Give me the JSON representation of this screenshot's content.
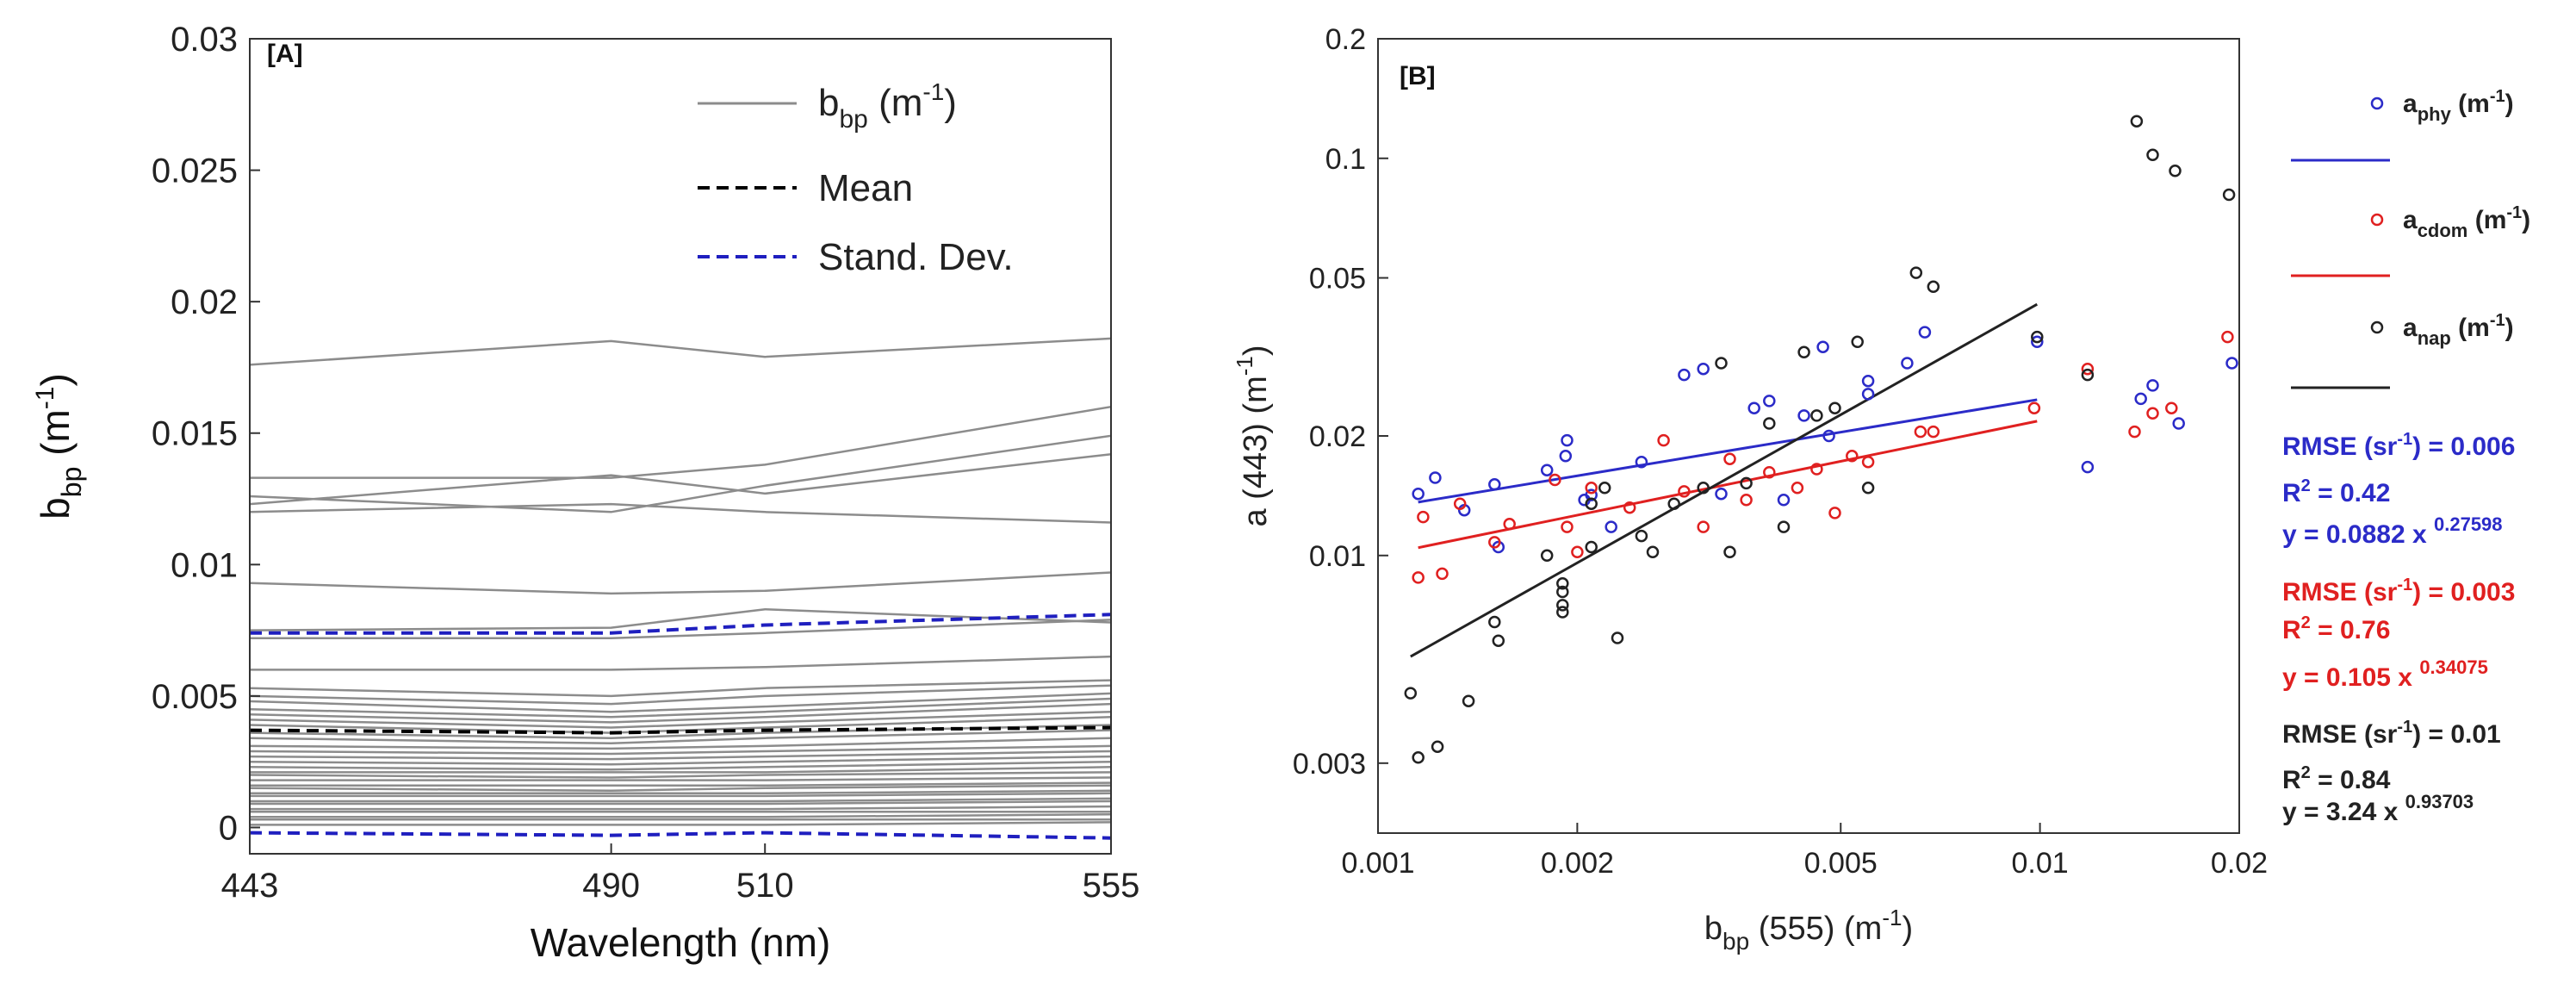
{
  "chart_data": [
    {
      "panel_label": "[A]",
      "type": "line",
      "xlabel": "Wavelength (nm)",
      "ylabel_main": "b",
      "ylabel_sub": "bp",
      "ylabel_unit_open": " (m",
      "ylabel_sup": "-1",
      "ylabel_unit_close": ")",
      "x": [
        443,
        490,
        510,
        555
      ],
      "x_ticks": [
        "443",
        "490",
        "510",
        "555"
      ],
      "ylim": [
        -0.001,
        0.03
      ],
      "y_ticks": [
        {
          "value": 0,
          "label": "0"
        },
        {
          "value": 0.005,
          "label": "0.005"
        },
        {
          "value": 0.01,
          "label": "0.01"
        },
        {
          "value": 0.015,
          "label": "0.015"
        },
        {
          "value": 0.02,
          "label": "0.02"
        },
        {
          "value": 0.025,
          "label": "0.025"
        },
        {
          "value": 0.03,
          "label": "0.03"
        }
      ],
      "legend": {
        "bbp_main": "b",
        "bbp_sub": "bp",
        "bbp_unit_open": " (m",
        "bbp_sup": "-1",
        "bbp_unit_close": ")",
        "mean": "Mean",
        "std": "Stand. Dev."
      },
      "colors": {
        "samples": "#8c8c8c",
        "mean": "#000000",
        "std": "#1f1fbf"
      },
      "series": [
        {
          "name": "bbp",
          "values": [
            0.0176,
            0.0185,
            0.0179,
            0.0186
          ]
        },
        {
          "name": "bbp",
          "values": [
            0.0133,
            0.0133,
            0.0138,
            0.016
          ]
        },
        {
          "name": "bbp",
          "values": [
            0.0126,
            0.012,
            0.013,
            0.0149
          ]
        },
        {
          "name": "bbp",
          "values": [
            0.0123,
            0.0134,
            0.0127,
            0.0142
          ]
        },
        {
          "name": "bbp",
          "values": [
            0.012,
            0.0123,
            0.012,
            0.0116
          ]
        },
        {
          "name": "bbp",
          "values": [
            0.0093,
            0.0089,
            0.009,
            0.0097
          ]
        },
        {
          "name": "bbp",
          "values": [
            0.0075,
            0.0076,
            0.0083,
            0.0078
          ]
        },
        {
          "name": "bbp",
          "values": [
            0.0072,
            0.0072,
            0.0074,
            0.0079
          ]
        },
        {
          "name": "bbp",
          "values": [
            0.006,
            0.006,
            0.0061,
            0.0065
          ]
        },
        {
          "name": "bbp",
          "values": [
            0.0053,
            0.005,
            0.0053,
            0.0056
          ]
        },
        {
          "name": "bbp",
          "values": [
            0.005,
            0.0047,
            0.005,
            0.0054
          ]
        },
        {
          "name": "bbp",
          "values": [
            0.0048,
            0.0044,
            0.0046,
            0.0051
          ]
        },
        {
          "name": "bbp",
          "values": [
            0.0045,
            0.0042,
            0.0044,
            0.0049
          ]
        },
        {
          "name": "bbp",
          "values": [
            0.0043,
            0.004,
            0.0042,
            0.0047
          ]
        },
        {
          "name": "bbp",
          "values": [
            0.0041,
            0.0038,
            0.004,
            0.0044
          ]
        },
        {
          "name": "bbp",
          "values": [
            0.0039,
            0.0036,
            0.0038,
            0.0042
          ]
        },
        {
          "name": "bbp",
          "values": [
            0.0036,
            0.0034,
            0.0036,
            0.0039
          ]
        },
        {
          "name": "bbp",
          "values": [
            0.0034,
            0.0032,
            0.0034,
            0.0037
          ]
        },
        {
          "name": "bbp",
          "values": [
            0.0031,
            0.003,
            0.0031,
            0.0034
          ]
        },
        {
          "name": "bbp",
          "values": [
            0.0029,
            0.0028,
            0.0029,
            0.0031
          ]
        },
        {
          "name": "bbp",
          "values": [
            0.0027,
            0.0026,
            0.0027,
            0.0029
          ]
        },
        {
          "name": "bbp",
          "values": [
            0.0025,
            0.0024,
            0.0025,
            0.0027
          ]
        },
        {
          "name": "bbp",
          "values": [
            0.0023,
            0.0022,
            0.0023,
            0.0025
          ]
        },
        {
          "name": "bbp",
          "values": [
            0.0021,
            0.0021,
            0.0021,
            0.0023
          ]
        },
        {
          "name": "bbp",
          "values": [
            0.002,
            0.0019,
            0.002,
            0.0021
          ]
        },
        {
          "name": "bbp",
          "values": [
            0.0018,
            0.0018,
            0.0018,
            0.0019
          ]
        },
        {
          "name": "bbp",
          "values": [
            0.0016,
            0.0016,
            0.0016,
            0.0017
          ]
        },
        {
          "name": "bbp",
          "values": [
            0.0015,
            0.0014,
            0.0015,
            0.0016
          ]
        },
        {
          "name": "bbp",
          "values": [
            0.0013,
            0.0013,
            0.0013,
            0.0014
          ]
        },
        {
          "name": "bbp",
          "values": [
            0.0012,
            0.0012,
            0.0012,
            0.0013
          ]
        },
        {
          "name": "bbp",
          "values": [
            0.001,
            0.001,
            0.001,
            0.0011
          ]
        },
        {
          "name": "bbp",
          "values": [
            0.0009,
            0.0009,
            0.0009,
            0.001
          ]
        },
        {
          "name": "bbp",
          "values": [
            0.0007,
            0.0007,
            0.0007,
            0.0008
          ]
        },
        {
          "name": "bbp",
          "values": [
            0.0006,
            0.0006,
            0.0006,
            0.0006
          ]
        },
        {
          "name": "bbp",
          "values": [
            0.0004,
            0.0004,
            0.0004,
            0.0005
          ]
        },
        {
          "name": "bbp",
          "values": [
            0.0003,
            0.0003,
            0.0003,
            0.0003
          ]
        },
        {
          "name": "bbp",
          "values": [
            0.0001,
            0.0001,
            0.0001,
            0.0002
          ]
        },
        {
          "name": "Mean",
          "values": [
            0.0037,
            0.0036,
            0.0037,
            0.0038
          ],
          "style": "dashed"
        },
        {
          "name": "Stand. Dev. upper",
          "values": [
            0.0074,
            0.0074,
            0.0077,
            0.0081
          ],
          "style": "dashed"
        },
        {
          "name": "Stand. Dev. lower",
          "values": [
            -0.0002,
            -0.0003,
            -0.0002,
            -0.0004
          ],
          "style": "dashed"
        }
      ]
    },
    {
      "panel_label": "[B]",
      "type": "scatter",
      "scale": "log-log",
      "xlabel_main": "b",
      "xlabel_sub": "bp",
      "xlabel_rest": " (555) (m",
      "xlabel_sup": "-1",
      "xlabel_close": ")",
      "ylabel_main": "a (443) (m",
      "ylabel_sup": "-1",
      "ylabel_close": ")",
      "xlim": [
        0.001,
        0.02
      ],
      "ylim": [
        0.002,
        0.2
      ],
      "x_ticks": [
        {
          "value": 0.001,
          "label": "0.001"
        },
        {
          "value": 0.002,
          "label": "0.002"
        },
        {
          "value": 0.005,
          "label": "0.005"
        },
        {
          "value": 0.01,
          "label": "0.01"
        },
        {
          "value": 0.02,
          "label": "0.02"
        }
      ],
      "y_ticks": [
        {
          "value": 0.003,
          "label": "0.003"
        },
        {
          "value": 0.01,
          "label": "0.01"
        },
        {
          "value": 0.02,
          "label": "0.02"
        },
        {
          "value": 0.05,
          "label": "0.05"
        },
        {
          "value": 0.1,
          "label": "0.1"
        },
        {
          "value": 0.2,
          "label": "0.2"
        }
      ],
      "series": [
        {
          "name": "aphy",
          "label_main": "a",
          "label_sub": "phy",
          "color": "#2b2bc8",
          "fit": {
            "a": 0.0882,
            "b": 0.27598
          },
          "stats": {
            "rmse_pre": "RMSE (sr",
            "rmse_sup": "-1",
            "rmse_post": ") = 0.006",
            "r2_pre": "R",
            "r2_sup": "2",
            "r2_post": " = 0.42",
            "eq_pre": "y = 0.0882 x ",
            "eq_sup": "0.27598"
          },
          "points": [
            [
              0.00115,
              0.0143
            ],
            [
              0.00122,
              0.0157
            ],
            [
              0.00135,
              0.013
            ],
            [
              0.0015,
              0.0151
            ],
            [
              0.00152,
              0.0105
            ],
            [
              0.0018,
              0.0164
            ],
            [
              0.00192,
              0.0178
            ],
            [
              0.00193,
              0.0195
            ],
            [
              0.00205,
              0.0138
            ],
            [
              0.0021,
              0.0142
            ],
            [
              0.00225,
              0.0118
            ],
            [
              0.0025,
              0.0172
            ],
            [
              0.0029,
              0.0285
            ],
            [
              0.0031,
              0.0295
            ],
            [
              0.0033,
              0.0143
            ],
            [
              0.0037,
              0.0235
            ],
            [
              0.0039,
              0.0245
            ],
            [
              0.0041,
              0.0138
            ],
            [
              0.0044,
              0.0225
            ],
            [
              0.0047,
              0.0335
            ],
            [
              0.0048,
              0.02
            ],
            [
              0.0055,
              0.0275
            ],
            [
              0.0055,
              0.0255
            ],
            [
              0.0063,
              0.0305
            ],
            [
              0.0067,
              0.0365
            ],
            [
              0.0099,
              0.0345
            ],
            [
              0.0118,
              0.0167
            ],
            [
              0.0142,
              0.0248
            ],
            [
              0.0148,
              0.0268
            ],
            [
              0.0162,
              0.0215
            ],
            [
              0.0195,
              0.0305
            ]
          ]
        },
        {
          "name": "acdom",
          "label_main": "a",
          "label_sub": "cdom",
          "color": "#e02020",
          "fit": {
            "a": 0.105,
            "b": 0.34075
          },
          "stats": {
            "rmse_pre": "RMSE (sr",
            "rmse_sup": "-1",
            "rmse_post": ") = 0.003",
            "r2_pre": "R",
            "r2_sup": "2",
            "r2_post": " = 0.76",
            "eq_pre": "y = 0.105 x ",
            "eq_sup": "0.34075"
          },
          "points": [
            [
              0.00115,
              0.0088
            ],
            [
              0.00117,
              0.0125
            ],
            [
              0.00125,
              0.009
            ],
            [
              0.00133,
              0.0135
            ],
            [
              0.0015,
              0.0108
            ],
            [
              0.00158,
              0.012
            ],
            [
              0.00185,
              0.0155
            ],
            [
              0.00193,
              0.0118
            ],
            [
              0.002,
              0.0102
            ],
            [
              0.0021,
              0.0148
            ],
            [
              0.0024,
              0.0132
            ],
            [
              0.0027,
              0.0195
            ],
            [
              0.0029,
              0.0145
            ],
            [
              0.0031,
              0.0118
            ],
            [
              0.0034,
              0.0175
            ],
            [
              0.0036,
              0.0138
            ],
            [
              0.0039,
              0.0162
            ],
            [
              0.0043,
              0.0148
            ],
            [
              0.0046,
              0.0165
            ],
            [
              0.0049,
              0.0128
            ],
            [
              0.0052,
              0.0178
            ],
            [
              0.0055,
              0.0172
            ],
            [
              0.0066,
              0.0205
            ],
            [
              0.0069,
              0.0205
            ],
            [
              0.0098,
              0.0235
            ],
            [
              0.0118,
              0.0295
            ],
            [
              0.0139,
              0.0205
            ],
            [
              0.0148,
              0.0228
            ],
            [
              0.0158,
              0.0235
            ],
            [
              0.0192,
              0.0355
            ]
          ]
        },
        {
          "name": "anap",
          "label_main": "a",
          "label_sub": "nap",
          "color": "#222222",
          "fit": {
            "a": 3.24,
            "b": 0.93703
          },
          "stats": {
            "rmse_pre": "RMSE (sr",
            "rmse_sup": "-1",
            "rmse_post": ") = 0.01",
            "r2_pre": "R",
            "r2_sup": "2",
            "r2_post": " = 0.84",
            "eq_pre": "y = 3.24 x ",
            "eq_sup": "0.93703"
          },
          "points": [
            [
              0.00112,
              0.0045
            ],
            [
              0.00115,
              0.0031
            ],
            [
              0.00123,
              0.0033
            ],
            [
              0.00137,
              0.0043
            ],
            [
              0.0015,
              0.0068
            ],
            [
              0.00152,
              0.0061
            ],
            [
              0.0018,
              0.01
            ],
            [
              0.0019,
              0.0085
            ],
            [
              0.0019,
              0.0081
            ],
            [
              0.0019,
              0.0075
            ],
            [
              0.0019,
              0.0072
            ],
            [
              0.0021,
              0.0105
            ],
            [
              0.0021,
              0.0135
            ],
            [
              0.0022,
              0.0148
            ],
            [
              0.0023,
              0.0062
            ],
            [
              0.0025,
              0.0112
            ],
            [
              0.0026,
              0.0102
            ],
            [
              0.0028,
              0.0135
            ],
            [
              0.0031,
              0.0148
            ],
            [
              0.0033,
              0.0305
            ],
            [
              0.0034,
              0.0102
            ],
            [
              0.0036,
              0.0152
            ],
            [
              0.0039,
              0.0215
            ],
            [
              0.0041,
              0.0118
            ],
            [
              0.0044,
              0.0325
            ],
            [
              0.0046,
              0.0225
            ],
            [
              0.0049,
              0.0235
            ],
            [
              0.0053,
              0.0345
            ],
            [
              0.0055,
              0.0148
            ],
            [
              0.0065,
              0.0515
            ],
            [
              0.0069,
              0.0475
            ],
            [
              0.0099,
              0.0355
            ],
            [
              0.0118,
              0.0285
            ],
            [
              0.014,
              0.124
            ],
            [
              0.0148,
              0.102
            ],
            [
              0.016,
              0.093
            ],
            [
              0.0193,
              0.081
            ]
          ]
        }
      ]
    }
  ]
}
